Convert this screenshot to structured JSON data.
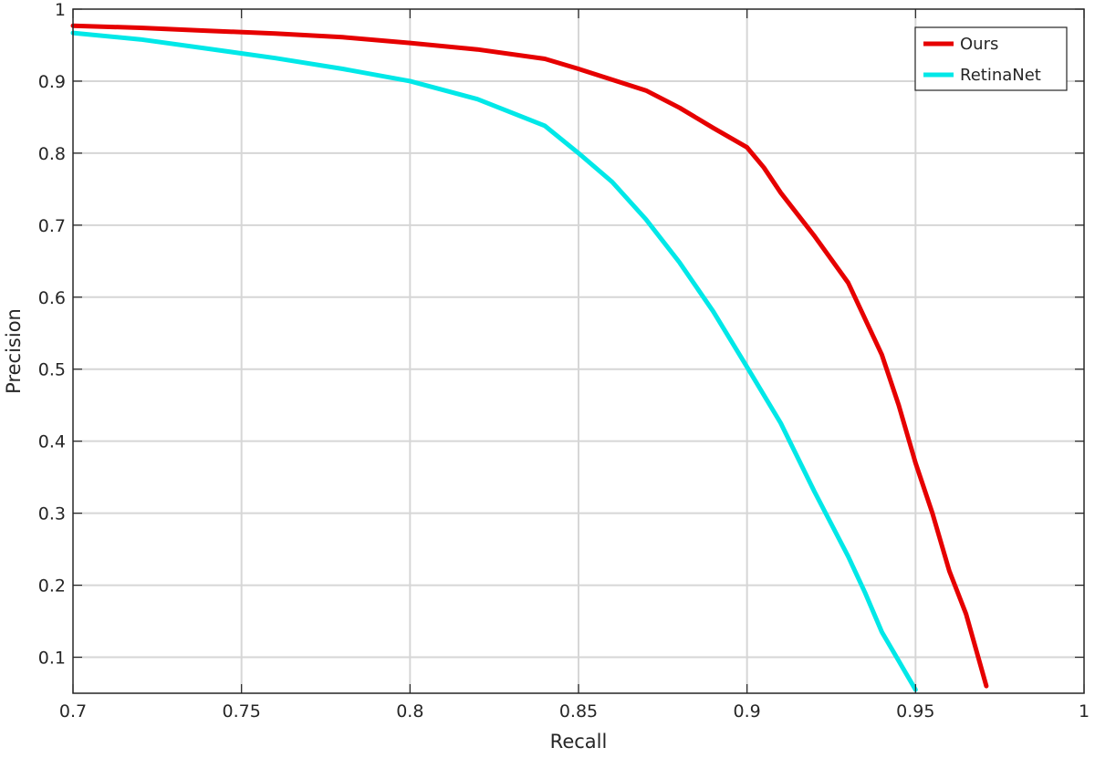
{
  "chart_data": {
    "type": "line",
    "title": "",
    "xlabel": "Recall",
    "ylabel": "Precision",
    "xlim": [
      0.7,
      1.0
    ],
    "ylim": [
      0.05,
      1.0
    ],
    "grid": true,
    "legend_position": "top-right",
    "x_ticks": [
      0.7,
      0.75,
      0.8,
      0.85,
      0.9,
      0.95,
      1.0
    ],
    "x_tick_labels": [
      "0.7",
      "0.75",
      "0.8",
      "0.85",
      "0.9",
      "0.95",
      "1"
    ],
    "y_ticks": [
      0.1,
      0.2,
      0.3,
      0.4,
      0.5,
      0.6,
      0.7,
      0.8,
      0.9,
      1.0
    ],
    "y_tick_labels": [
      "0.1",
      "0.2",
      "0.3",
      "0.4",
      "0.5",
      "0.6",
      "0.7",
      "0.8",
      "0.9",
      "1"
    ],
    "series": [
      {
        "name": "Ours",
        "color": "#e60000",
        "points": [
          [
            0.7,
            0.977
          ],
          [
            0.72,
            0.974
          ],
          [
            0.74,
            0.97
          ],
          [
            0.76,
            0.966
          ],
          [
            0.78,
            0.961
          ],
          [
            0.8,
            0.953
          ],
          [
            0.82,
            0.944
          ],
          [
            0.84,
            0.931
          ],
          [
            0.85,
            0.917
          ],
          [
            0.86,
            0.902
          ],
          [
            0.87,
            0.887
          ],
          [
            0.88,
            0.863
          ],
          [
            0.89,
            0.835
          ],
          [
            0.9,
            0.808
          ],
          [
            0.905,
            0.78
          ],
          [
            0.91,
            0.745
          ],
          [
            0.92,
            0.685
          ],
          [
            0.93,
            0.62
          ],
          [
            0.94,
            0.52
          ],
          [
            0.945,
            0.45
          ],
          [
            0.95,
            0.37
          ],
          [
            0.955,
            0.3
          ],
          [
            0.96,
            0.22
          ],
          [
            0.965,
            0.16
          ],
          [
            0.968,
            0.11
          ],
          [
            0.971,
            0.06
          ]
        ]
      },
      {
        "name": "RetinaNet",
        "color": "#00e8e8",
        "points": [
          [
            0.7,
            0.967
          ],
          [
            0.72,
            0.958
          ],
          [
            0.74,
            0.945
          ],
          [
            0.76,
            0.932
          ],
          [
            0.78,
            0.917
          ],
          [
            0.8,
            0.9
          ],
          [
            0.82,
            0.875
          ],
          [
            0.84,
            0.838
          ],
          [
            0.85,
            0.8
          ],
          [
            0.86,
            0.76
          ],
          [
            0.87,
            0.708
          ],
          [
            0.88,
            0.648
          ],
          [
            0.89,
            0.58
          ],
          [
            0.9,
            0.503
          ],
          [
            0.91,
            0.425
          ],
          [
            0.92,
            0.33
          ],
          [
            0.93,
            0.24
          ],
          [
            0.935,
            0.19
          ],
          [
            0.94,
            0.135
          ],
          [
            0.945,
            0.095
          ],
          [
            0.95,
            0.055
          ]
        ]
      }
    ]
  }
}
